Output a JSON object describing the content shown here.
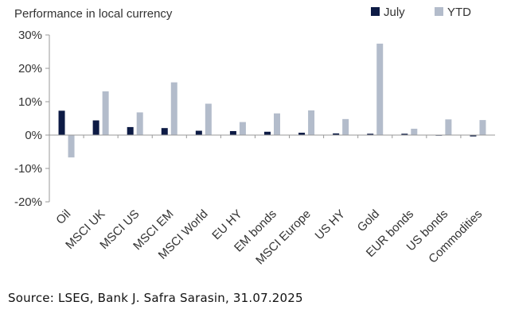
{
  "chart_data": {
    "type": "bar",
    "title": "Performance in local currency",
    "xlabel": "",
    "ylabel": "",
    "ylim": [
      -20,
      30
    ],
    "yticks": [
      -20,
      -10,
      0,
      10,
      20,
      30
    ],
    "ytick_labels": [
      "-20%",
      "-10%",
      "0%",
      "10%",
      "20%",
      "30%"
    ],
    "grid": false,
    "legend_position": "top-right",
    "categories": [
      "Oil",
      "MSCI UK",
      "MSCI US",
      "MSCI EM",
      "MSCI World",
      "EU HY",
      "EM bonds",
      "MSCI Europe",
      "US HY",
      "Gold",
      "EUR bonds",
      "US bonds",
      "Commodities"
    ],
    "series": [
      {
        "name": "July",
        "color": "#0d1b45",
        "values": [
          7.3,
          4.4,
          2.4,
          2.1,
          1.3,
          1.2,
          1.0,
          0.7,
          0.5,
          0.4,
          0.4,
          0.0,
          -0.4
        ]
      },
      {
        "name": "YTD",
        "color": "#b3bccb",
        "values": [
          -6.7,
          13.1,
          6.8,
          15.8,
          9.4,
          3.9,
          6.5,
          7.4,
          4.8,
          27.4,
          1.9,
          4.7,
          4.5
        ]
      }
    ]
  },
  "source": "Source: LSEG, Bank J. Safra Sarasin, 31.07.2025"
}
